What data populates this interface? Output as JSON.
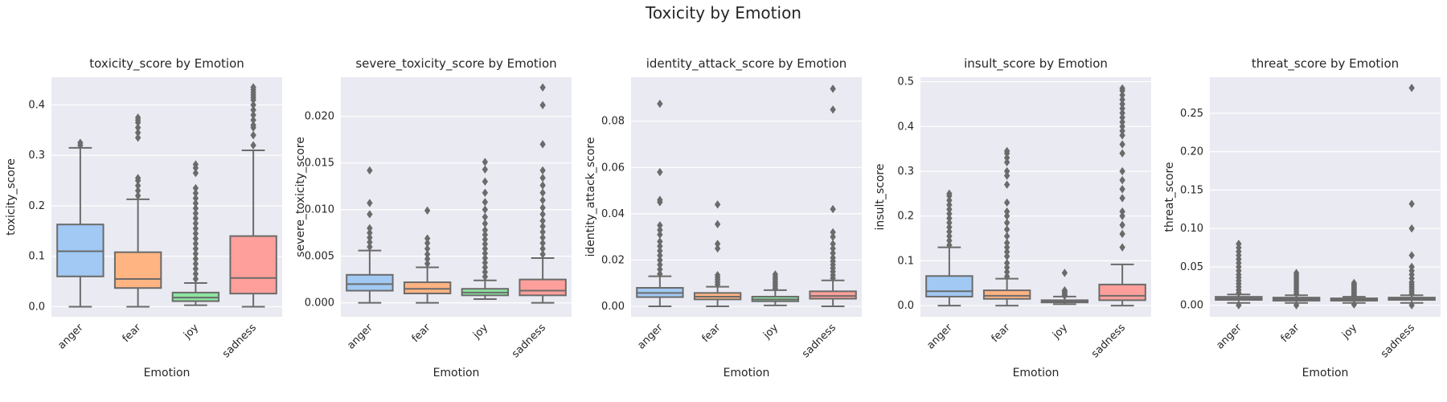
{
  "figure": {
    "suptitle": "Toxicity by Emotion"
  },
  "colors": {
    "panel_bg": "#EAEAF2",
    "grid": "#FFFFFF",
    "line": "#6b6b6b",
    "categories": {
      "anger": "#A1C9F4",
      "fear": "#FFB482",
      "joy": "#8DE5A1",
      "sadness": "#FF9F9B"
    }
  },
  "chart_data": [
    {
      "type": "box",
      "title": "toxicity_score by Emotion",
      "xlabel": "Emotion",
      "ylabel": "toxicity_score",
      "categories": [
        "anger",
        "fear",
        "joy",
        "sadness"
      ],
      "ylim": [
        -0.02,
        0.455
      ],
      "yticks": [
        0.0,
        0.1,
        0.2,
        0.3,
        0.4
      ],
      "ytick_labels": [
        "0.0",
        "0.1",
        "0.2",
        "0.3",
        "0.4"
      ],
      "boxes": [
        {
          "category": "anger",
          "whisker_low": 0.0,
          "q1": 0.06,
          "median": 0.11,
          "q3": 0.163,
          "whisker_high": 0.315,
          "outliers": [
            0.32,
            0.325
          ]
        },
        {
          "category": "fear",
          "whisker_low": 0.0,
          "q1": 0.037,
          "median": 0.055,
          "q3": 0.108,
          "whisker_high": 0.213,
          "outliers": [
            0.22,
            0.23,
            0.24,
            0.25,
            0.255,
            0.335,
            0.345,
            0.355,
            0.365,
            0.37,
            0.375
          ]
        },
        {
          "category": "joy",
          "whisker_low": 0.003,
          "q1": 0.011,
          "median": 0.018,
          "q3": 0.028,
          "whisker_high": 0.047,
          "outliers": [
            0.055,
            0.065,
            0.075,
            0.085,
            0.095,
            0.105,
            0.115,
            0.125,
            0.135,
            0.145,
            0.155,
            0.165,
            0.175,
            0.185,
            0.195,
            0.205,
            0.215,
            0.225,
            0.235,
            0.265,
            0.275,
            0.282
          ]
        },
        {
          "category": "sadness",
          "whisker_low": 0.0,
          "q1": 0.026,
          "median": 0.057,
          "q3": 0.14,
          "whisker_high": 0.31,
          "outliers": [
            0.32,
            0.34,
            0.355,
            0.36,
            0.37,
            0.38,
            0.39,
            0.4,
            0.41,
            0.415,
            0.42,
            0.425,
            0.43,
            0.435
          ]
        }
      ]
    },
    {
      "type": "box",
      "title": "severe_toxicity_score by Emotion",
      "xlabel": "Emotion",
      "ylabel": "severe_toxicity_score",
      "categories": [
        "anger",
        "fear",
        "joy",
        "sadness"
      ],
      "ylim": [
        -0.0015,
        0.0242
      ],
      "yticks": [
        0.0,
        0.005,
        0.01,
        0.015,
        0.02
      ],
      "ytick_labels": [
        "0.000",
        "0.005",
        "0.010",
        "0.015",
        "0.020"
      ],
      "boxes": [
        {
          "category": "anger",
          "whisker_low": 0.0,
          "q1": 0.0013,
          "median": 0.002,
          "q3": 0.003,
          "whisker_high": 0.0056,
          "outliers": [
            0.006,
            0.0065,
            0.007,
            0.0075,
            0.008,
            0.0095,
            0.0107,
            0.0142
          ]
        },
        {
          "category": "fear",
          "whisker_low": 0.0,
          "q1": 0.001,
          "median": 0.0015,
          "q3": 0.0022,
          "whisker_high": 0.0038,
          "outliers": [
            0.0042,
            0.0047,
            0.0052,
            0.0058,
            0.0064,
            0.0069,
            0.0099
          ]
        },
        {
          "category": "joy",
          "whisker_low": 0.0004,
          "q1": 0.0008,
          "median": 0.0011,
          "q3": 0.0015,
          "whisker_high": 0.0024,
          "outliers": [
            0.0028,
            0.0033,
            0.0038,
            0.0043,
            0.0048,
            0.0053,
            0.0058,
            0.0063,
            0.0068,
            0.0073,
            0.0078,
            0.0085,
            0.0092,
            0.01,
            0.0108,
            0.0118,
            0.013,
            0.0143,
            0.0151
          ]
        },
        {
          "category": "sadness",
          "whisker_low": 0.0,
          "q1": 0.0008,
          "median": 0.0013,
          "q3": 0.0025,
          "whisker_high": 0.0048,
          "outliers": [
            0.0052,
            0.0058,
            0.0064,
            0.007,
            0.0076,
            0.0082,
            0.0088,
            0.0095,
            0.0102,
            0.011,
            0.0118,
            0.0126,
            0.0134,
            0.0142,
            0.017,
            0.0212,
            0.0231
          ]
        }
      ]
    },
    {
      "type": "box",
      "title": "identity_attack_score by Emotion",
      "xlabel": "Emotion",
      "ylabel": "identity_attack_score",
      "categories": [
        "anger",
        "fear",
        "joy",
        "sadness"
      ],
      "ylim": [
        -0.0045,
        0.099
      ],
      "yticks": [
        0.0,
        0.02,
        0.04,
        0.06,
        0.08
      ],
      "ytick_labels": [
        "0.00",
        "0.02",
        "0.04",
        "0.06",
        "0.08"
      ],
      "boxes": [
        {
          "category": "anger",
          "whisker_low": 0.0,
          "q1": 0.004,
          "median": 0.0058,
          "q3": 0.008,
          "whisker_high": 0.013,
          "outliers": [
            0.014,
            0.016,
            0.018,
            0.02,
            0.022,
            0.024,
            0.026,
            0.028,
            0.031,
            0.033,
            0.035,
            0.045,
            0.046,
            0.058,
            0.0875
          ]
        },
        {
          "category": "fear",
          "whisker_low": 0.0,
          "q1": 0.003,
          "median": 0.0042,
          "q3": 0.0058,
          "whisker_high": 0.0085,
          "outliers": [
            0.0095,
            0.0105,
            0.0115,
            0.0125,
            0.0135,
            0.025,
            0.027,
            0.0355,
            0.044
          ]
        },
        {
          "category": "joy",
          "whisker_low": 0.0004,
          "q1": 0.0022,
          "median": 0.003,
          "q3": 0.0042,
          "whisker_high": 0.007,
          "outliers": [
            0.0078,
            0.0088,
            0.0098,
            0.0108,
            0.0118,
            0.0128,
            0.0138
          ]
        },
        {
          "category": "sadness",
          "whisker_low": 0.0,
          "q1": 0.0033,
          "median": 0.0045,
          "q3": 0.0065,
          "whisker_high": 0.0112,
          "outliers": [
            0.0122,
            0.0135,
            0.015,
            0.0165,
            0.018,
            0.0195,
            0.021,
            0.023,
            0.025,
            0.027,
            0.03,
            0.032,
            0.042,
            0.085,
            0.094
          ]
        }
      ]
    },
    {
      "type": "box",
      "title": "insult_score by Emotion",
      "xlabel": "Emotion",
      "ylabel": "insult_score",
      "categories": [
        "anger",
        "fear",
        "joy",
        "sadness"
      ],
      "ylim": [
        -0.025,
        0.51
      ],
      "yticks": [
        0.0,
        0.1,
        0.2,
        0.3,
        0.4,
        0.5
      ],
      "ytick_labels": [
        "0.0",
        "0.1",
        "0.2",
        "0.3",
        "0.4",
        "0.5"
      ],
      "boxes": [
        {
          "category": "anger",
          "whisker_low": 0.0,
          "q1": 0.02,
          "median": 0.032,
          "q3": 0.066,
          "whisker_high": 0.13,
          "outliers": [
            0.135,
            0.145,
            0.155,
            0.165,
            0.175,
            0.185,
            0.195,
            0.205,
            0.215,
            0.225,
            0.235,
            0.245,
            0.25
          ]
        },
        {
          "category": "fear",
          "whisker_low": 0.0,
          "q1": 0.015,
          "median": 0.022,
          "q3": 0.034,
          "whisker_high": 0.06,
          "outliers": [
            0.065,
            0.075,
            0.085,
            0.095,
            0.11,
            0.12,
            0.13,
            0.14,
            0.155,
            0.17,
            0.185,
            0.2,
            0.21,
            0.23,
            0.27,
            0.29,
            0.3,
            0.32,
            0.33,
            0.34,
            0.345
          ]
        },
        {
          "category": "joy",
          "whisker_low": 0.003,
          "q1": 0.007,
          "median": 0.009,
          "q3": 0.012,
          "whisker_high": 0.02,
          "outliers": [
            0.022,
            0.025,
            0.028,
            0.031,
            0.034,
            0.073
          ]
        },
        {
          "category": "sadness",
          "whisker_low": 0.0,
          "q1": 0.012,
          "median": 0.022,
          "q3": 0.047,
          "whisker_high": 0.092,
          "outliers": [
            0.13,
            0.16,
            0.18,
            0.2,
            0.21,
            0.24,
            0.26,
            0.28,
            0.3,
            0.34,
            0.36,
            0.38,
            0.39,
            0.4,
            0.41,
            0.42,
            0.43,
            0.44,
            0.45,
            0.46,
            0.47,
            0.48,
            0.485
          ]
        }
      ]
    },
    {
      "type": "box",
      "title": "threat_score by Emotion",
      "xlabel": "Emotion",
      "ylabel": "threat_score",
      "categories": [
        "anger",
        "fear",
        "joy",
        "sadness"
      ],
      "ylim": [
        -0.015,
        0.297
      ],
      "yticks": [
        0.0,
        0.05,
        0.1,
        0.15,
        0.2,
        0.25
      ],
      "ytick_labels": [
        "0.00",
        "0.05",
        "0.10",
        "0.15",
        "0.20",
        "0.25"
      ],
      "boxes": [
        {
          "category": "anger",
          "whisker_low": 0.003,
          "q1": 0.007,
          "median": 0.009,
          "q3": 0.011,
          "whisker_high": 0.014,
          "outliers": [
            0.0,
            0.016,
            0.02,
            0.024,
            0.028,
            0.032,
            0.036,
            0.04,
            0.045,
            0.05,
            0.055,
            0.06,
            0.065,
            0.07,
            0.075,
            0.08
          ]
        },
        {
          "category": "fear",
          "whisker_low": 0.003,
          "q1": 0.006,
          "median": 0.008,
          "q3": 0.01,
          "whisker_high": 0.013,
          "outliers": [
            0.0,
            0.015,
            0.018,
            0.021,
            0.024,
            0.027,
            0.03,
            0.033,
            0.036,
            0.039,
            0.042
          ]
        },
        {
          "category": "joy",
          "whisker_low": 0.003,
          "q1": 0.006,
          "median": 0.007,
          "q3": 0.009,
          "whisker_high": 0.011,
          "outliers": [
            0.001,
            0.013,
            0.015,
            0.017,
            0.019,
            0.021,
            0.023,
            0.025,
            0.027,
            0.029
          ]
        },
        {
          "category": "sadness",
          "whisker_low": 0.003,
          "q1": 0.007,
          "median": 0.008,
          "q3": 0.01,
          "whisker_high": 0.013,
          "outliers": [
            0.0,
            0.015,
            0.018,
            0.021,
            0.024,
            0.027,
            0.03,
            0.035,
            0.04,
            0.045,
            0.05,
            0.065,
            0.1,
            0.132,
            0.283
          ]
        }
      ]
    }
  ]
}
